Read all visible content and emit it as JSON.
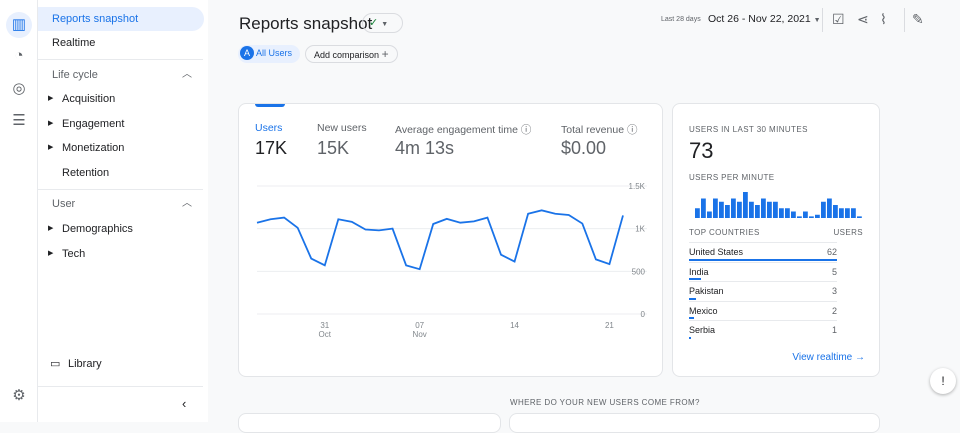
{
  "sidebar": {
    "items": [
      {
        "label": "Reports snapshot"
      },
      {
        "label": "Realtime"
      },
      {
        "label": "Life cycle"
      },
      {
        "label": "Acquisition"
      },
      {
        "label": "Engagement"
      },
      {
        "label": "Monetization"
      },
      {
        "label": "Retention"
      },
      {
        "label": "User"
      },
      {
        "label": "Demographics"
      },
      {
        "label": "Tech"
      }
    ],
    "library": "Library"
  },
  "header": {
    "title": "Reports snapshot",
    "date_prefix": "Last 28 days",
    "date_range": "Oct 26 - Nov 22, 2021",
    "segment_letter": "A",
    "segment": "All Users",
    "add_comparison": "Add comparison"
  },
  "metrics": [
    {
      "label": "Users",
      "value": "17K"
    },
    {
      "label": "New users",
      "value": "15K"
    },
    {
      "label": "Average engagement time",
      "value": "4m 13s"
    },
    {
      "label": "Total revenue",
      "value": "$0.00"
    }
  ],
  "chart_data": {
    "type": "line",
    "x": [
      "Oct 26",
      "Oct 27",
      "Oct 28",
      "Oct 29",
      "Oct 30",
      "Oct 31",
      "Nov 1",
      "Nov 2",
      "Nov 3",
      "Nov 4",
      "Nov 5",
      "Nov 6",
      "Nov 7",
      "Nov 8",
      "Nov 9",
      "Nov 10",
      "Nov 11",
      "Nov 12",
      "Nov 13",
      "Nov 14",
      "Nov 15",
      "Nov 16",
      "Nov 17",
      "Nov 18",
      "Nov 19",
      "Nov 20",
      "Nov 21",
      "Nov 22"
    ],
    "values": [
      1070,
      1110,
      1130,
      1010,
      650,
      570,
      1110,
      1080,
      990,
      980,
      1000,
      570,
      525,
      1055,
      1115,
      1070,
      1085,
      1130,
      695,
      615,
      1175,
      1215,
      1175,
      1160,
      1060,
      640,
      585,
      1155
    ],
    "ylim": [
      0,
      1500
    ],
    "yticks": [
      "1.5K",
      "1K",
      "500",
      "0"
    ],
    "xticks": [
      {
        "label": "31",
        "sub": "Oct"
      },
      {
        "label": "07",
        "sub": "Nov"
      },
      {
        "label": "14",
        "sub": ""
      },
      {
        "label": "21",
        "sub": ""
      }
    ],
    "grid": true,
    "color": "#1a73e8"
  },
  "realtime": {
    "title": "USERS IN LAST 30 MINUTES",
    "value": "73",
    "per_minute_label": "USERS PER MINUTE",
    "per_minute": [
      3,
      6,
      2,
      6,
      5,
      4,
      6,
      5,
      8,
      5,
      4,
      6,
      5,
      5,
      3,
      3,
      2,
      0.5,
      2,
      0.5,
      1,
      5,
      6,
      4,
      3,
      3,
      3,
      0.5
    ],
    "countries_header": "TOP COUNTRIES",
    "users_header": "USERS",
    "countries": [
      {
        "name": "United States",
        "users": "62"
      },
      {
        "name": "India",
        "users": "5"
      },
      {
        "name": "Pakistan",
        "users": "3"
      },
      {
        "name": "Mexico",
        "users": "2"
      },
      {
        "name": "Serbia",
        "users": "1"
      }
    ],
    "link": "View realtime"
  },
  "section_title": "WHERE DO YOUR NEW USERS COME FROM?"
}
